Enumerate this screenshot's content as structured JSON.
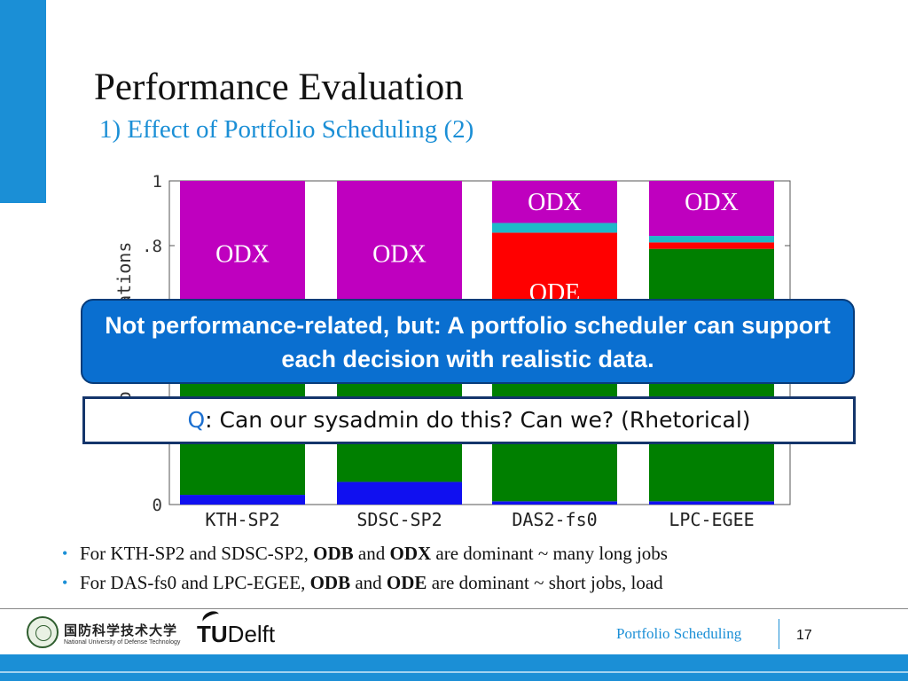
{
  "slide": {
    "title": "Performance Evaluation",
    "subtitle": "1) Effect of Portfolio Scheduling (2)",
    "callout": "Not performance-related, but: A portfolio scheduler can support each decision with realistic data.",
    "question": {
      "prefix": "Q",
      "text": ": Can our sysadmin do this? Can we? (Rhetorical)"
    },
    "bullets": [
      [
        {
          "text": "For KTH-SP2 and SDSC-SP2, ",
          "bold": false
        },
        {
          "text": "ODB",
          "bold": true
        },
        {
          "text": " and ",
          "bold": false
        },
        {
          "text": "ODX",
          "bold": true
        },
        {
          "text": " are dominant ~ many long jobs",
          "bold": false
        }
      ],
      [
        {
          "text": "For DAS-fs0 and LPC-EGEE,  ",
          "bold": false
        },
        {
          "text": "ODB",
          "bold": true
        },
        {
          "text": " and ",
          "bold": false
        },
        {
          "text": "ODE",
          "bold": true
        },
        {
          "text": " are dominant ~ short jobs, load",
          "bold": false
        }
      ]
    ],
    "footer": {
      "nudt_cn": "国防科学技术大学",
      "nudt_en": "National University of Defense Technology",
      "tud_prefix": "TU",
      "tud_suffix": "Delft",
      "label": "Portfolio Scheduling",
      "page": "17"
    },
    "colors": {
      "accent": "#1b8fd6",
      "callout": "#0a6fd0",
      "odx": "#bf00bf",
      "ode": "#ff0000",
      "odb": "#007f00",
      "cyan": "#1fb8c8",
      "blue": "#1010f0"
    }
  },
  "chart_data": {
    "type": "bar",
    "stacked": true,
    "ylabel": "Ratio of ...cations",
    "ylim": [
      0,
      1
    ],
    "yticks": [
      "0",
      ".8",
      "1"
    ],
    "ytick_values": [
      0,
      0.8,
      1
    ],
    "categories": [
      "KTH-SP2",
      "SDSC-SP2",
      "DAS2-fs0",
      "LPC-EGEE"
    ],
    "segment_colors": [
      "#1010f0",
      "#007f00",
      "#ff0000",
      "#1fb8c8",
      "#bf00bf"
    ],
    "bars": [
      [
        0.03,
        0.57,
        0,
        0,
        0.4
      ],
      [
        0.07,
        0.53,
        0,
        0,
        0.4
      ],
      [
        0.01,
        0.38,
        0.45,
        0.03,
        0.13
      ],
      [
        0.01,
        0.78,
        0.02,
        0.02,
        0.17
      ]
    ],
    "labels": [
      {
        "text": "ODX",
        "bar": 0,
        "value": 0.78
      },
      {
        "text": "ODX",
        "bar": 1,
        "value": 0.78
      },
      {
        "text": "ODX",
        "bar": 2,
        "value": 0.94
      },
      {
        "text": "ODE",
        "bar": 2,
        "value": 0.66
      },
      {
        "text": "ODX",
        "bar": 3,
        "value": 0.94
      }
    ]
  }
}
